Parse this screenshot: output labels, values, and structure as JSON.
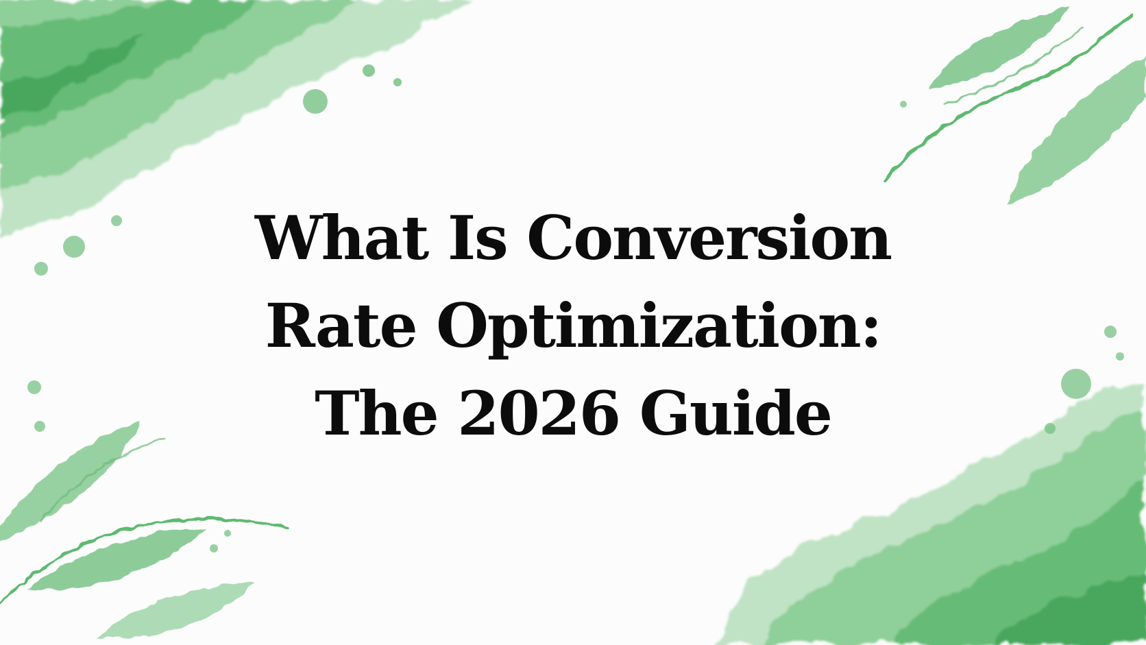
{
  "title": {
    "lines": [
      "What Is Conversion",
      "Rate Optimization:",
      "The 2026 Guide"
    ]
  },
  "colors": {
    "background": "#fbfcfb",
    "watercolor_green": "#4caf5c",
    "text": "#0c0c0c"
  }
}
